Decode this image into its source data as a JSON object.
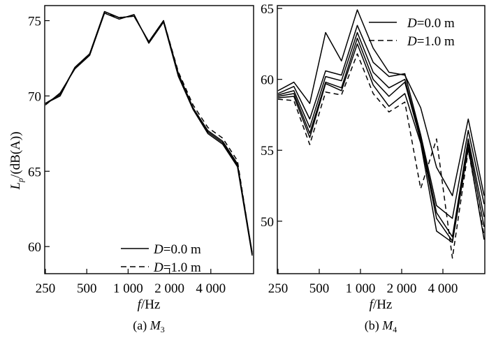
{
  "colors": {
    "line": "#000000",
    "background": "#ffffff"
  },
  "ylabel": {
    "main": "L",
    "sub": "p",
    "unit": "/(dB(A))"
  },
  "xlabel": {
    "main": "f",
    "unit": "/Hz"
  },
  "legend": [
    {
      "var": "D",
      "value": "=0.0 m",
      "style": "solid"
    },
    {
      "var": "D",
      "value": "=1.0 m",
      "style": "dashed"
    }
  ],
  "chart_data": [
    {
      "type": "line",
      "caption": {
        "prefix": "(a) ",
        "var": "M",
        "sub": "3"
      },
      "x_ticks": [
        "250",
        "500",
        "1 000",
        "2 000",
        "4 000"
      ],
      "x_tick_index": [
        0,
        3,
        6,
        9,
        12
      ],
      "y_ticks": [
        60,
        65,
        70,
        75
      ],
      "ylim": [
        58.2,
        76.0
      ],
      "x_count": 16,
      "legend_position": "bottom-right",
      "series": [
        {
          "style": "solid",
          "values": [
            69.5,
            70.1,
            71.9,
            72.8,
            75.6,
            75.2,
            75.3,
            73.6,
            75.0,
            71.5,
            69.2,
            67.6,
            66.9,
            65.4,
            59.5
          ]
        },
        {
          "style": "solid",
          "values": [
            69.4,
            70.2,
            71.8,
            72.7,
            75.5,
            75.1,
            75.4,
            73.5,
            74.9,
            71.3,
            69.1,
            67.5,
            66.8,
            65.3,
            59.4
          ]
        },
        {
          "style": "solid",
          "values": [
            69.5,
            70.0,
            71.9,
            72.8,
            75.6,
            75.2,
            75.3,
            73.6,
            75.0,
            71.4,
            69.2,
            67.7,
            67.0,
            65.5,
            59.6
          ]
        },
        {
          "style": "dashed",
          "values": [
            69.5,
            70.1,
            71.9,
            72.8,
            75.5,
            75.2,
            75.3,
            73.6,
            75.0,
            71.6,
            69.4,
            67.9,
            67.2,
            65.7,
            59.5
          ]
        }
      ]
    },
    {
      "type": "line",
      "caption": {
        "prefix": "(b) ",
        "var": "M",
        "sub": "4"
      },
      "x_ticks": [
        "250",
        "500",
        "1 000",
        "2 000",
        "4 000"
      ],
      "x_tick_index": [
        0,
        3,
        6,
        9,
        12
      ],
      "y_ticks": [
        50,
        55,
        60,
        65
      ],
      "ylim": [
        46.3,
        65.2
      ],
      "x_count": 16,
      "legend_position": "top-right",
      "series": [
        {
          "style": "solid",
          "values": [
            59.2,
            59.8,
            58.3,
            63.3,
            61.3,
            64.9,
            62.2,
            60.5,
            60.3,
            58.0,
            53.8,
            51.8,
            57.2,
            51.8
          ]
        },
        {
          "style": "solid",
          "values": [
            59.0,
            59.5,
            57.2,
            60.6,
            60.3,
            63.8,
            61.2,
            60.2,
            60.4,
            56.1,
            51.1,
            50.2,
            56.4,
            51.2
          ]
        },
        {
          "style": "solid",
          "values": [
            58.9,
            59.2,
            56.6,
            60.2,
            59.9,
            63.3,
            60.5,
            59.4,
            60.0,
            55.9,
            50.6,
            48.9,
            55.8,
            50.3
          ]
        },
        {
          "style": "solid",
          "values": [
            58.8,
            59.0,
            56.2,
            59.8,
            59.4,
            62.9,
            60.0,
            58.8,
            59.8,
            55.7,
            50.2,
            48.6,
            55.5,
            49.6
          ]
        },
        {
          "style": "solid",
          "values": [
            58.7,
            58.8,
            55.9,
            59.7,
            59.2,
            62.5,
            59.6,
            58.1,
            59.0,
            55.5,
            49.3,
            48.5,
            55.2,
            48.7
          ]
        },
        {
          "style": "dashed",
          "values": [
            58.6,
            58.5,
            55.4,
            59.1,
            58.9,
            61.8,
            59.0,
            57.7,
            58.4,
            52.3,
            55.8,
            47.4,
            55.0,
            49.0
          ]
        }
      ]
    }
  ]
}
